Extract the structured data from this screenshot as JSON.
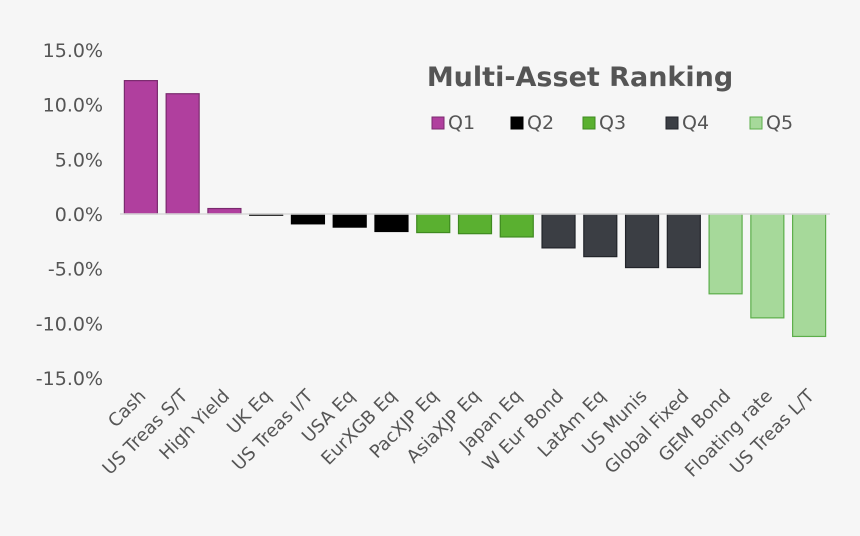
{
  "chart_data": {
    "type": "bar",
    "title": "Multi-Asset Ranking",
    "categories": [
      "Cash",
      "US Treas S/T",
      "High Yield",
      "UK Eq",
      "US Treas I/T",
      "USA Eq",
      "EurXGB Eq",
      "PacXJP Eq",
      "AsiaXJP Eq",
      "Japan Eq",
      "W Eur Bond",
      "LatAm Eq",
      "US Munis",
      "Global Fixed",
      "GEM Bond",
      "Floating rate",
      "US Treas L/T"
    ],
    "values": [
      12.2,
      11.0,
      0.5,
      -0.1,
      -0.9,
      -1.2,
      -1.6,
      -1.7,
      -1.8,
      -2.1,
      -3.1,
      -3.9,
      -4.9,
      -4.9,
      -7.3,
      -9.5,
      -11.2
    ],
    "quintile": [
      "Q1",
      "Q1",
      "Q1",
      "Q2",
      "Q2",
      "Q2",
      "Q2",
      "Q3",
      "Q3",
      "Q3",
      "Q4",
      "Q4",
      "Q4",
      "Q4",
      "Q5",
      "Q5",
      "Q5"
    ],
    "ylim": [
      -15,
      15
    ],
    "yticks": [
      "15.0%",
      "10.0%",
      "5.0%",
      "0.0%",
      "-5.0%",
      "-10.0%",
      "-15.0%"
    ],
    "ytick_values": [
      15,
      10,
      5,
      0,
      -5,
      -10,
      -15
    ],
    "legend": {
      "placement": "top-right",
      "items": [
        {
          "label": "Q1",
          "color": "#b03f9e"
        },
        {
          "label": "Q2",
          "color": "#000000"
        },
        {
          "label": "Q3",
          "color": "#5ab030"
        },
        {
          "label": "Q4",
          "color": "#3b3e44"
        },
        {
          "label": "Q5",
          "color": "#a6d99a"
        }
      ]
    },
    "colors": {
      "Q1": {
        "fill": "#b03f9e",
        "stroke": "#7a2a6e"
      },
      "Q2": {
        "fill": "#000000",
        "stroke": "#000000"
      },
      "Q3": {
        "fill": "#5ab030",
        "stroke": "#3f8a20"
      },
      "Q4": {
        "fill": "#3b3e44",
        "stroke": "#22242a"
      },
      "Q5": {
        "fill": "#a6d99a",
        "stroke": "#5cae4a"
      }
    },
    "grid": false
  }
}
